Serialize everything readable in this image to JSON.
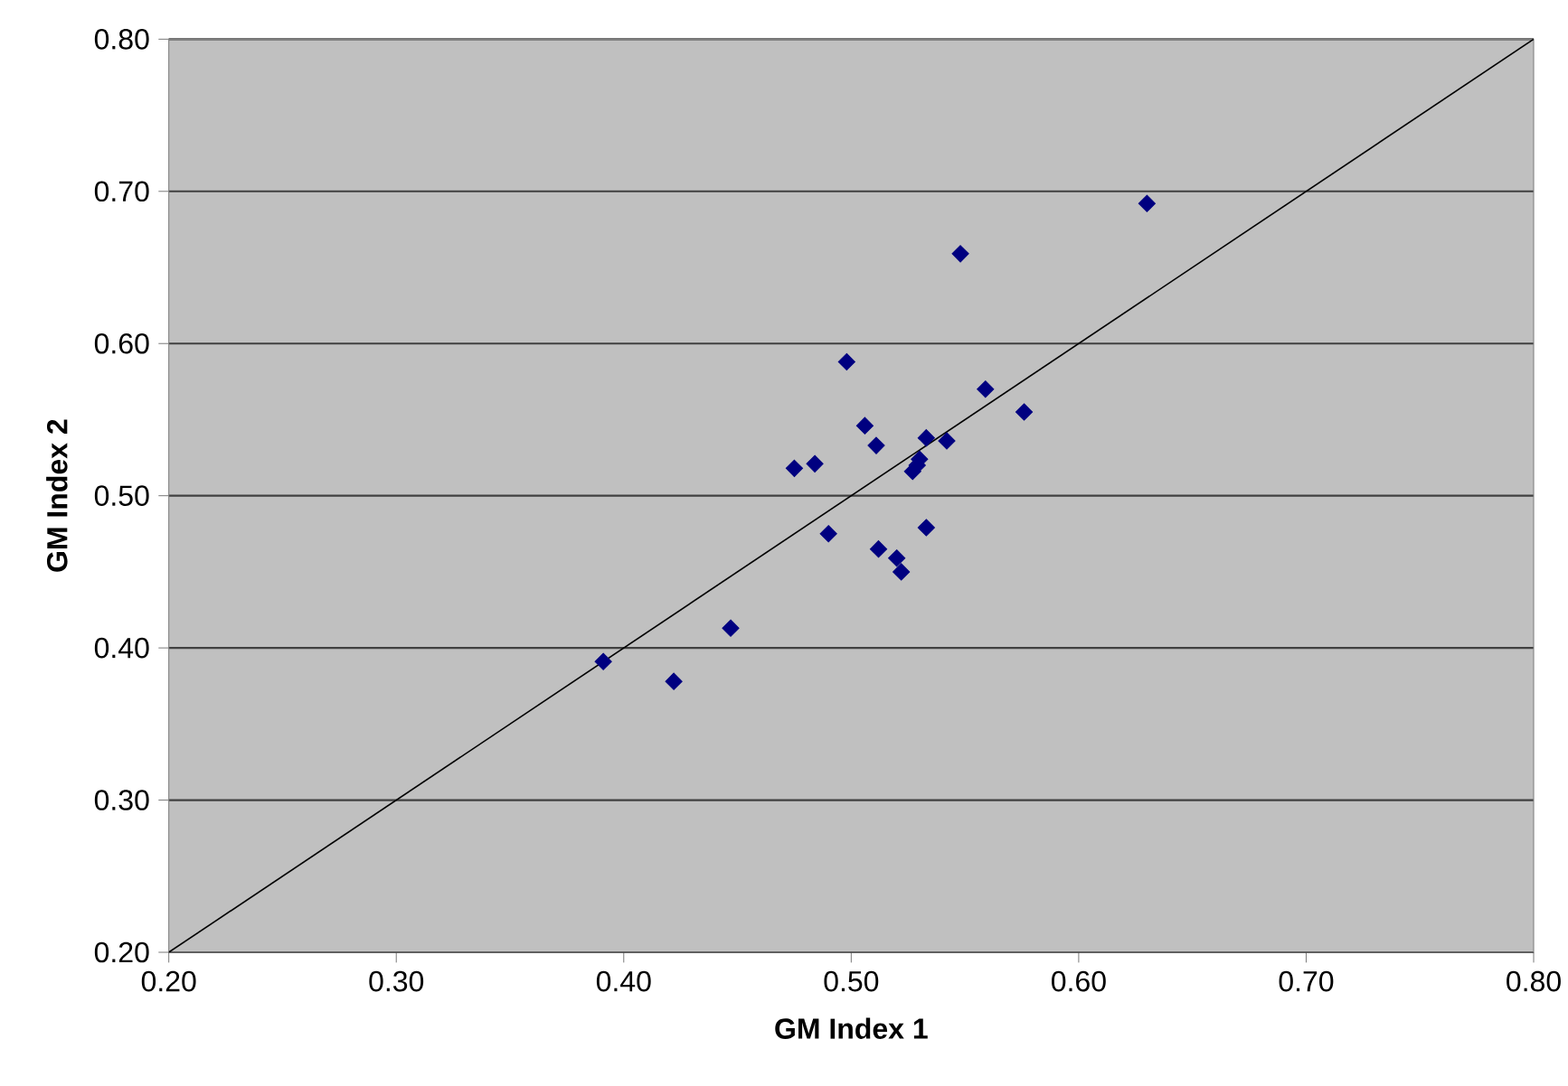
{
  "chart_data": {
    "type": "scatter",
    "xlabel": "GM Index 1",
    "ylabel": "GM Index 2",
    "xlim": [
      0.2,
      0.8
    ],
    "ylim": [
      0.2,
      0.8
    ],
    "xticks": [
      {
        "value": 0.2,
        "label": "0.20"
      },
      {
        "value": 0.3,
        "label": "0.30"
      },
      {
        "value": 0.4,
        "label": "0.40"
      },
      {
        "value": 0.5,
        "label": "0.50"
      },
      {
        "value": 0.6,
        "label": "0.60"
      },
      {
        "value": 0.7,
        "label": "0.70"
      },
      {
        "value": 0.8,
        "label": "0.80"
      }
    ],
    "yticks": [
      {
        "value": 0.2,
        "label": "0.20"
      },
      {
        "value": 0.3,
        "label": "0.30"
      },
      {
        "value": 0.4,
        "label": "0.40"
      },
      {
        "value": 0.5,
        "label": "0.50"
      },
      {
        "value": 0.6,
        "label": "0.60"
      },
      {
        "value": 0.7,
        "label": "0.70"
      },
      {
        "value": 0.8,
        "label": "0.80"
      }
    ],
    "grid": "y",
    "marker": "diamond",
    "series": [
      {
        "color": "#000080",
        "x": [
          0.391,
          0.422,
          0.447,
          0.475,
          0.484,
          0.49,
          0.498,
          0.506,
          0.511,
          0.512,
          0.52,
          0.522,
          0.527,
          0.529,
          0.53,
          0.533,
          0.533,
          0.542,
          0.548,
          0.559,
          0.576,
          0.63
        ],
        "values": [
          0.391,
          0.378,
          0.413,
          0.518,
          0.521,
          0.475,
          0.588,
          0.546,
          0.533,
          0.465,
          0.459,
          0.45,
          0.516,
          0.52,
          0.524,
          0.538,
          0.479,
          0.536,
          0.659,
          0.57,
          0.555,
          0.692
        ]
      },
      {
        "type": "line",
        "color": "#000000",
        "marker": "none",
        "x": [
          0.2,
          0.8
        ],
        "values": [
          0.2,
          0.8
        ]
      }
    ]
  }
}
